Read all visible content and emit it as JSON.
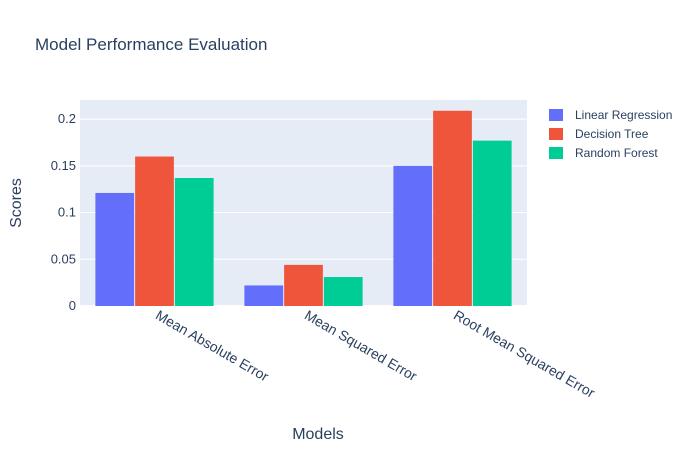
{
  "chart_data": {
    "type": "bar",
    "title": "Model Performance Evaluation",
    "xlabel": "Models",
    "ylabel": "Scores",
    "categories": [
      "Mean Absolute Error",
      "Mean Squared Error",
      "Root Mean Squared Error"
    ],
    "series": [
      {
        "name": "Linear Regression",
        "color": "#636efa",
        "values": [
          0.121,
          0.022,
          0.15
        ]
      },
      {
        "name": "Decision Tree",
        "color": "#ef553b",
        "values": [
          0.16,
          0.044,
          0.209
        ]
      },
      {
        "name": "Random Forest",
        "color": "#00cc96",
        "values": [
          0.137,
          0.031,
          0.177
        ]
      }
    ],
    "ylim": [
      0,
      0.2205
    ],
    "yticks": [
      0,
      0.05,
      0.1,
      0.15,
      0.2
    ],
    "ytick_labels": [
      "0",
      "0.05",
      "0.1",
      "0.15",
      "0.2"
    ],
    "grid": true,
    "legend_position": "top-right",
    "plot_background": "#e5ecf6",
    "text_color": "#2a3f5f"
  }
}
